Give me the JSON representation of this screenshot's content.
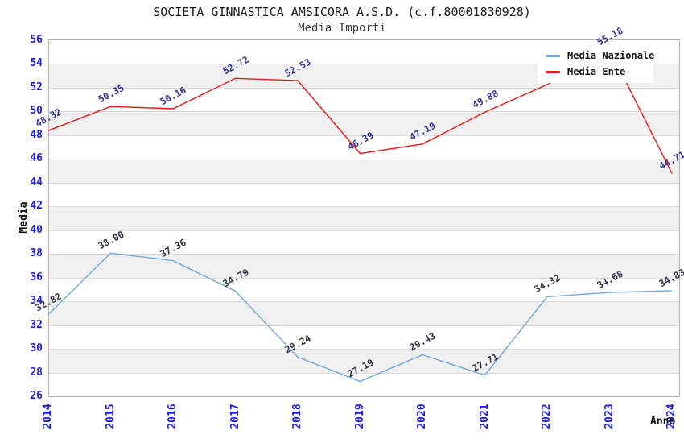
{
  "chart_data": {
    "type": "line",
    "title": "SOCIETA GINNASTICA AMSICORA A.S.D. (c.f.80001830928)",
    "subtitle": "Media Importi",
    "xlabel": "Anno",
    "ylabel": "Media",
    "ylim": [
      26,
      56
    ],
    "ytick_step": 2,
    "grid": "horizontal-bands",
    "legend_position": "top-right",
    "categories": [
      "2014",
      "2015",
      "2016",
      "2017",
      "2018",
      "2019",
      "2020",
      "2021",
      "2022",
      "2023",
      "2024"
    ],
    "series": [
      {
        "name": "Media Nazionale",
        "color": "#6fa8dc",
        "label_color": "#333344",
        "values": [
          32.82,
          38.0,
          37.36,
          34.79,
          29.24,
          27.19,
          29.43,
          27.71,
          34.32,
          34.68,
          34.83
        ],
        "labels": [
          "32.82",
          "38.00",
          "37.36",
          "34.79",
          "29.24",
          "27.19",
          "29.43",
          "27.71",
          "34.32",
          "34.68",
          "34.83"
        ]
      },
      {
        "name": "Media Ente",
        "color": "#ee1515",
        "label_color": "#333399",
        "values": [
          48.32,
          50.35,
          50.16,
          52.72,
          52.53,
          46.39,
          47.19,
          49.88,
          52.2,
          55.18,
          44.71
        ],
        "labels": [
          "48.32",
          "50.35",
          "50.16",
          "52.72",
          "52.53",
          "46.39",
          "47.19",
          "49.88",
          null,
          "55.18",
          "44.71"
        ]
      }
    ],
    "colors": {
      "axis_tick_color": "#1c1cf0",
      "band_fill": "#f0f0f0",
      "gridline": "#dcdcdc",
      "plot_border": "#b5b5b5",
      "title_color": "#1a1a1a"
    }
  }
}
